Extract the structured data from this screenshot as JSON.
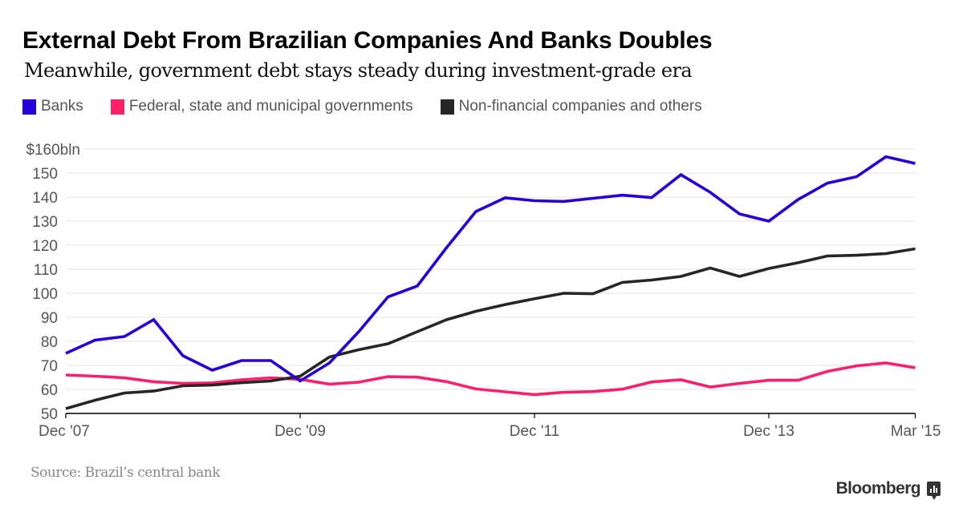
{
  "header": {
    "title": "External Debt From Brazilian Companies And Banks Doubles",
    "subtitle": "Meanwhile, government debt stays steady during investment-grade era"
  },
  "legend": [
    {
      "label": "Banks",
      "color": "#2800d7"
    },
    {
      "label": "Federal, state and municipal governments",
      "color": "#ff2068"
    },
    {
      "label": "Non-financial companies and others",
      "color": "#262626"
    }
  ],
  "footer": {
    "source": "Source: Brazil’s central bank",
    "brand": "Bloomberg"
  },
  "chart_data": {
    "type": "line",
    "title": "External Debt From Brazilian Companies And Banks Doubles",
    "subtitle": "Meanwhile, government debt stays steady during investment-grade era",
    "xlabel": "",
    "ylabel": "",
    "ylim": [
      50,
      160
    ],
    "yticks": [
      50,
      60,
      70,
      80,
      90,
      100,
      110,
      120,
      130,
      140,
      150,
      160
    ],
    "ytick_labels": [
      "50",
      "60",
      "70",
      "80",
      "90",
      "100",
      "110",
      "120",
      "130",
      "140",
      "150",
      "$160bln"
    ],
    "grid": true,
    "legend_position": "top-left",
    "x": [
      "Dec '07",
      "Mar '08",
      "Jun '08",
      "Sep '08",
      "Dec '08",
      "Mar '09",
      "Jun '09",
      "Sep '09",
      "Dec '09",
      "Mar '10",
      "Jun '10",
      "Sep '10",
      "Dec '10",
      "Mar '11",
      "Jun '11",
      "Sep '11",
      "Dec '11",
      "Mar '12",
      "Jun '12",
      "Sep '12",
      "Dec '12",
      "Mar '13",
      "Jun '13",
      "Sep '13",
      "Dec '13",
      "Mar '14",
      "Jun '14",
      "Sep '14",
      "Dec '14",
      "Mar '15"
    ],
    "xticks": [
      {
        "index": 0,
        "label": "Dec '07"
      },
      {
        "index": 8,
        "label": "Dec '09"
      },
      {
        "index": 16,
        "label": "Dec '11"
      },
      {
        "index": 24,
        "label": "Dec '13"
      },
      {
        "index": 29,
        "label": "Mar '15"
      }
    ],
    "series": [
      {
        "name": "Banks",
        "color": "#2800d7",
        "values": [
          75,
          80.5,
          82,
          89,
          74,
          68,
          72,
          72,
          63.5,
          71,
          84,
          98.5,
          103,
          119,
          134,
          139.7,
          138.5,
          138.2,
          139.5,
          140.8,
          139.8,
          149.3,
          142,
          133,
          130,
          139,
          145.8,
          148.5,
          156.8,
          154
        ]
      },
      {
        "name": "Federal, state and municipal governments",
        "color": "#ff2068",
        "values": [
          66,
          65.5,
          64.8,
          63.2,
          62.5,
          62.7,
          64,
          64.8,
          64.2,
          62.2,
          63,
          65.3,
          65.1,
          63.2,
          60.2,
          59,
          57.8,
          58.8,
          59.1,
          60.1,
          63.1,
          64,
          61,
          62.5,
          63.8,
          63.8,
          67.5,
          69.8,
          71,
          69
        ]
      },
      {
        "name": "Non-financial companies and others",
        "color": "#262626",
        "values": [
          52,
          55.5,
          58.5,
          59.3,
          61.5,
          61.8,
          62.8,
          63.5,
          65.5,
          73.5,
          76.5,
          79,
          84,
          89,
          92.5,
          95.3,
          97.7,
          100,
          99.8,
          104.5,
          105.5,
          107,
          110.5,
          107,
          110.3,
          112.7,
          115.5,
          115.8,
          116.5,
          118.5
        ]
      }
    ]
  }
}
